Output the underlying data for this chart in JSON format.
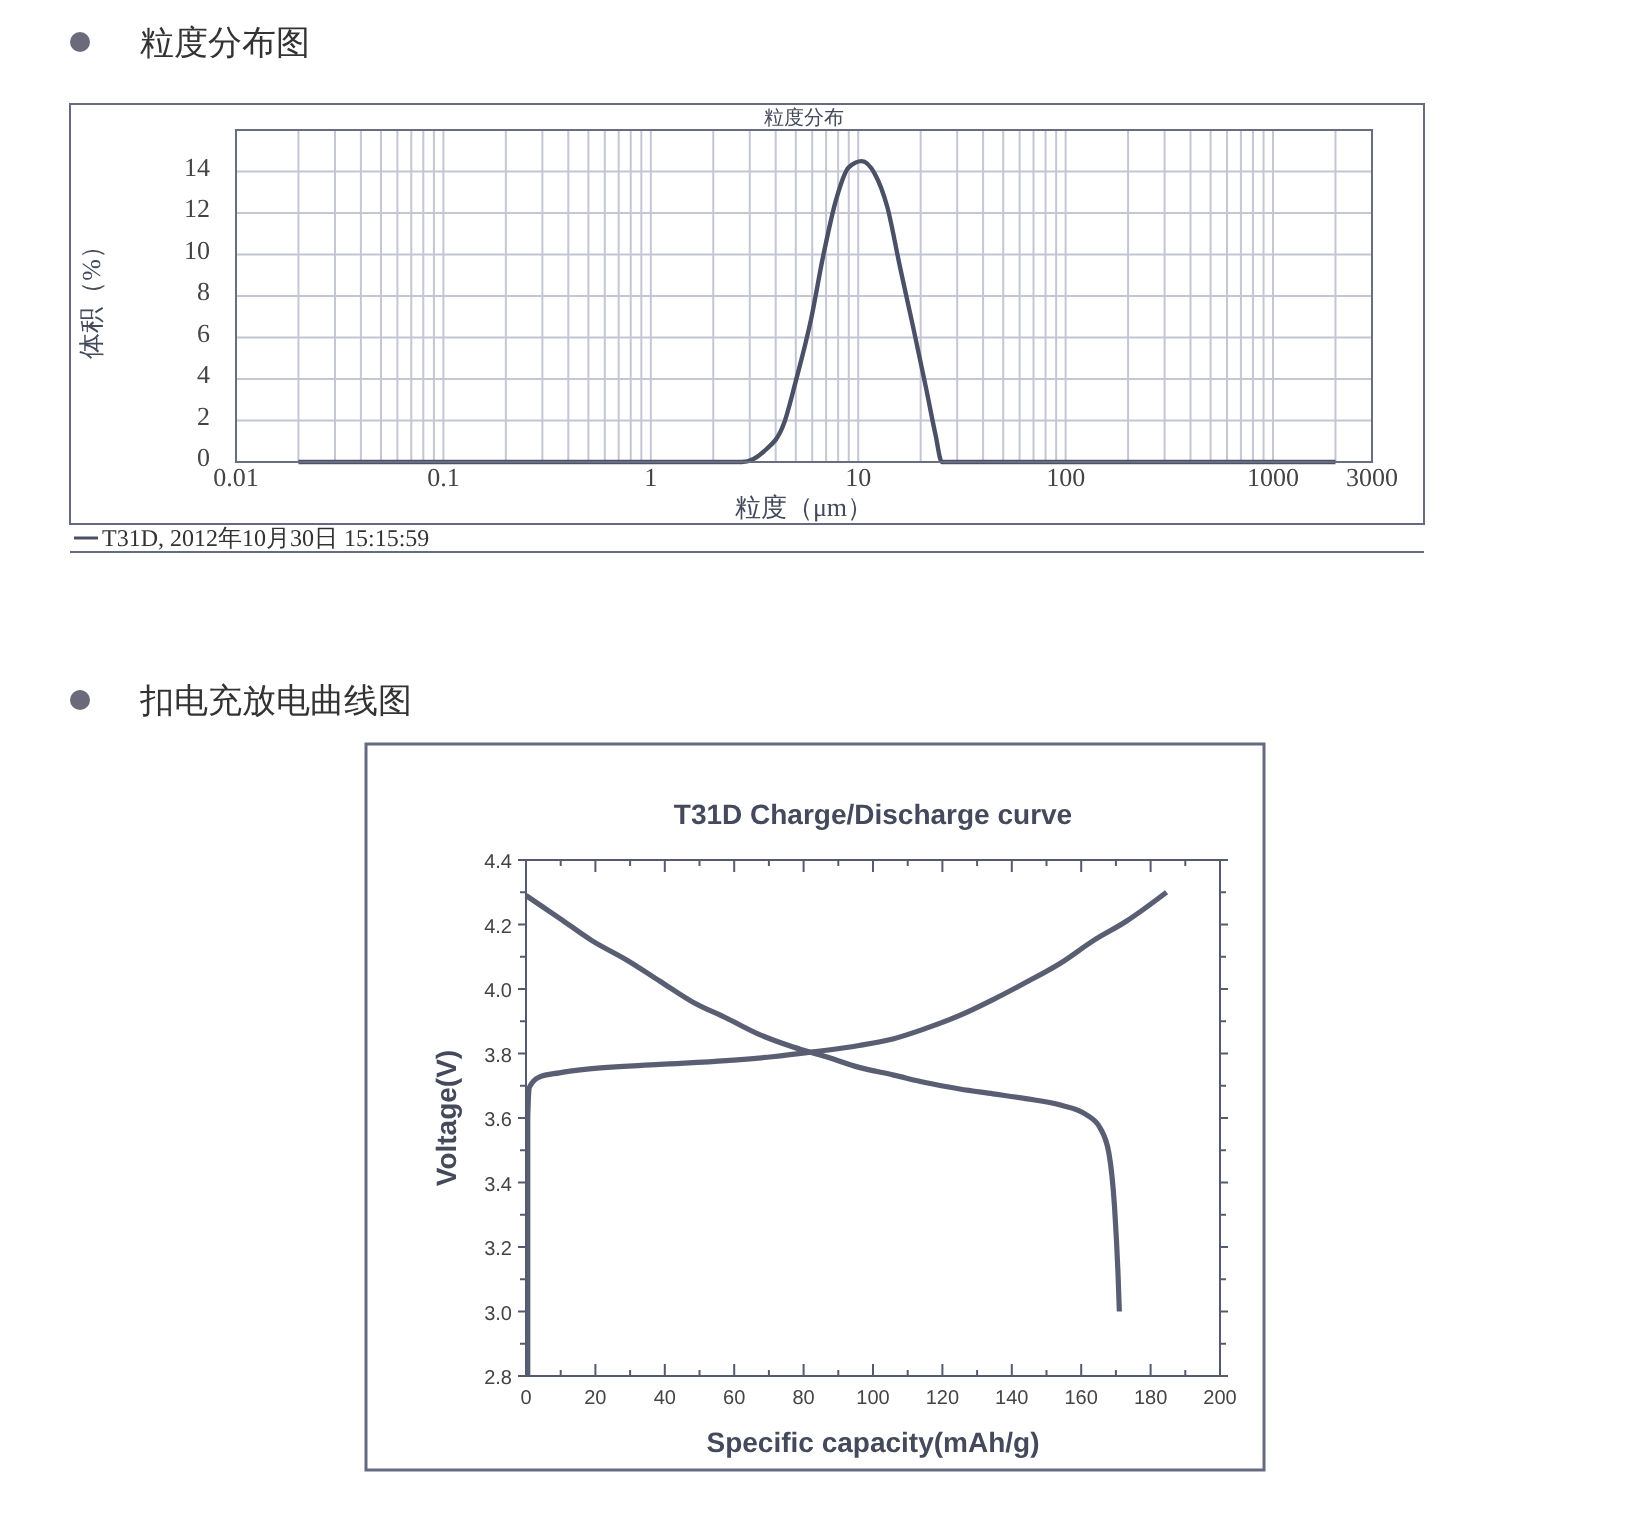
{
  "chart_data": [
    {
      "type": "line",
      "title": "粒度分布图",
      "subtitle": "粒度分布",
      "xlabel": "粒度（μm）",
      "ylabel": "体积（%）",
      "log": "x",
      "grid": true,
      "legend": "bottom left",
      "xlim": [
        0.01,
        3000
      ],
      "ylim": [
        0,
        16
      ],
      "xticks": [
        0.01,
        0.1,
        1,
        10,
        100,
        1000,
        3000
      ],
      "yticks": [
        0,
        2,
        4,
        6,
        8,
        10,
        12,
        14
      ],
      "series": [
        {
          "name": "T31D, 2012年10月30日 15:15:59",
          "color": "#4a5066",
          "x": [
            0.02,
            2.75,
            3.5,
            4.4,
            5.0,
            5.9,
            6.8,
            7.8,
            9.0,
            10.4,
            12,
            13.8,
            15.9,
            18.4,
            21.3,
            23.6,
            25.3,
            2000
          ],
          "values": [
            0,
            0,
            0.5,
            1.9,
            3.9,
            6.8,
            10,
            12.6,
            14.2,
            14.5,
            13.9,
            12.3,
            9.4,
            6.5,
            3.5,
            1.3,
            0,
            0
          ]
        }
      ]
    },
    {
      "type": "line",
      "title": "扣电充放电曲线图",
      "subtitle": "T31D Charge/Discharge curve",
      "xlabel": "Specific capacity(mAh/g)",
      "ylabel": "Voltage(V)",
      "xlim": [
        0,
        200
      ],
      "ylim": [
        2.8,
        4.4
      ],
      "xticks": [
        0,
        20,
        40,
        60,
        80,
        100,
        120,
        140,
        160,
        180,
        200
      ],
      "yticks": [
        2.8,
        {
          "value": 3,
          "label": "3.0"
        },
        3.2,
        3.4,
        3.6,
        3.8,
        {
          "value": 4,
          "label": "4.0"
        },
        4.2,
        4.4
      ],
      "series": [
        {
          "color": "#5a5e72",
          "x": [
            0.5,
            0.5,
            1,
            3.8,
            9.6,
            19,
            38.5,
            57.7,
            71,
            82.7,
            96,
            106,
            115,
            125,
            134.6,
            144,
            154,
            163.5,
            173,
            184.6
          ],
          "values": [
            2.8,
            3.6,
            3.696,
            3.727,
            3.74,
            3.753,
            3.766,
            3.778,
            3.79,
            3.805,
            3.825,
            3.846,
            3.877,
            3.918,
            3.967,
            4.02,
            4.08,
            4.15,
            4.21,
            4.3
          ]
        },
        {
          "color": "#5a5e72",
          "x": [
            0,
            9.6,
            19,
            29,
            38.5,
            48,
            57.7,
            67,
            77,
            86.5,
            96,
            106,
            115,
            125,
            134.6,
            144,
            154,
            161.5,
            165.4,
            168,
            169.6,
            170.6,
            171
          ],
          "values": [
            4.29,
            4.22,
            4.15,
            4.09,
            4.025,
            3.96,
            3.91,
            3.86,
            3.82,
            3.79,
            3.757,
            3.733,
            3.71,
            3.69,
            3.675,
            3.66,
            3.64,
            3.61,
            3.57,
            3.49,
            3.325,
            3.12,
            3.0
          ]
        }
      ]
    }
  ]
}
